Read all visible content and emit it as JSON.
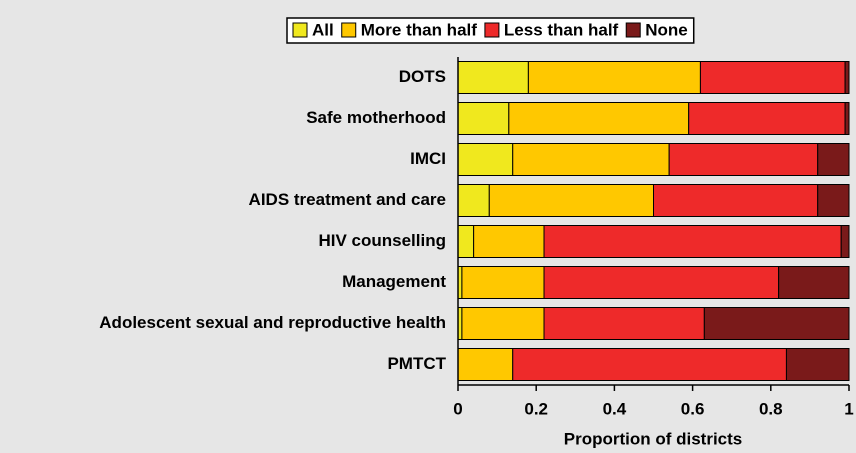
{
  "chart_data": {
    "type": "bar",
    "orientation": "horizontal",
    "stacked": true,
    "xlabel": "Proportion of districts",
    "categories": [
      "DOTS",
      "Safe motherhood",
      "IMCI",
      "AIDS treatment and care",
      "HIV counselling",
      "Management",
      "Adolescent sexual and reproductive health",
      "PMTCT"
    ],
    "series": [
      {
        "name": "All",
        "color": "#f0e81e",
        "values": [
          0.18,
          0.13,
          0.14,
          0.08,
          0.04,
          0.01,
          0.01,
          0
        ]
      },
      {
        "name": "More than half",
        "color": "#ffc800",
        "values": [
          0.44,
          0.46,
          0.4,
          0.42,
          0.18,
          0.21,
          0.21,
          0.14
        ]
      },
      {
        "name": "Less than half",
        "color": "#ee2a2a",
        "values": [
          0.37,
          0.4,
          0.38,
          0.42,
          0.76,
          0.6,
          0.41,
          0.7
        ]
      },
      {
        "name": "None",
        "color": "#7a1a1a",
        "values": [
          0.01,
          0.01,
          0.08,
          0.08,
          0.02,
          0.18,
          0.37,
          0.16
        ]
      }
    ],
    "xlim": [
      0,
      1
    ],
    "xticks": [
      0,
      0.2,
      0.4,
      0.6,
      0.8,
      1
    ],
    "legend": "top"
  }
}
